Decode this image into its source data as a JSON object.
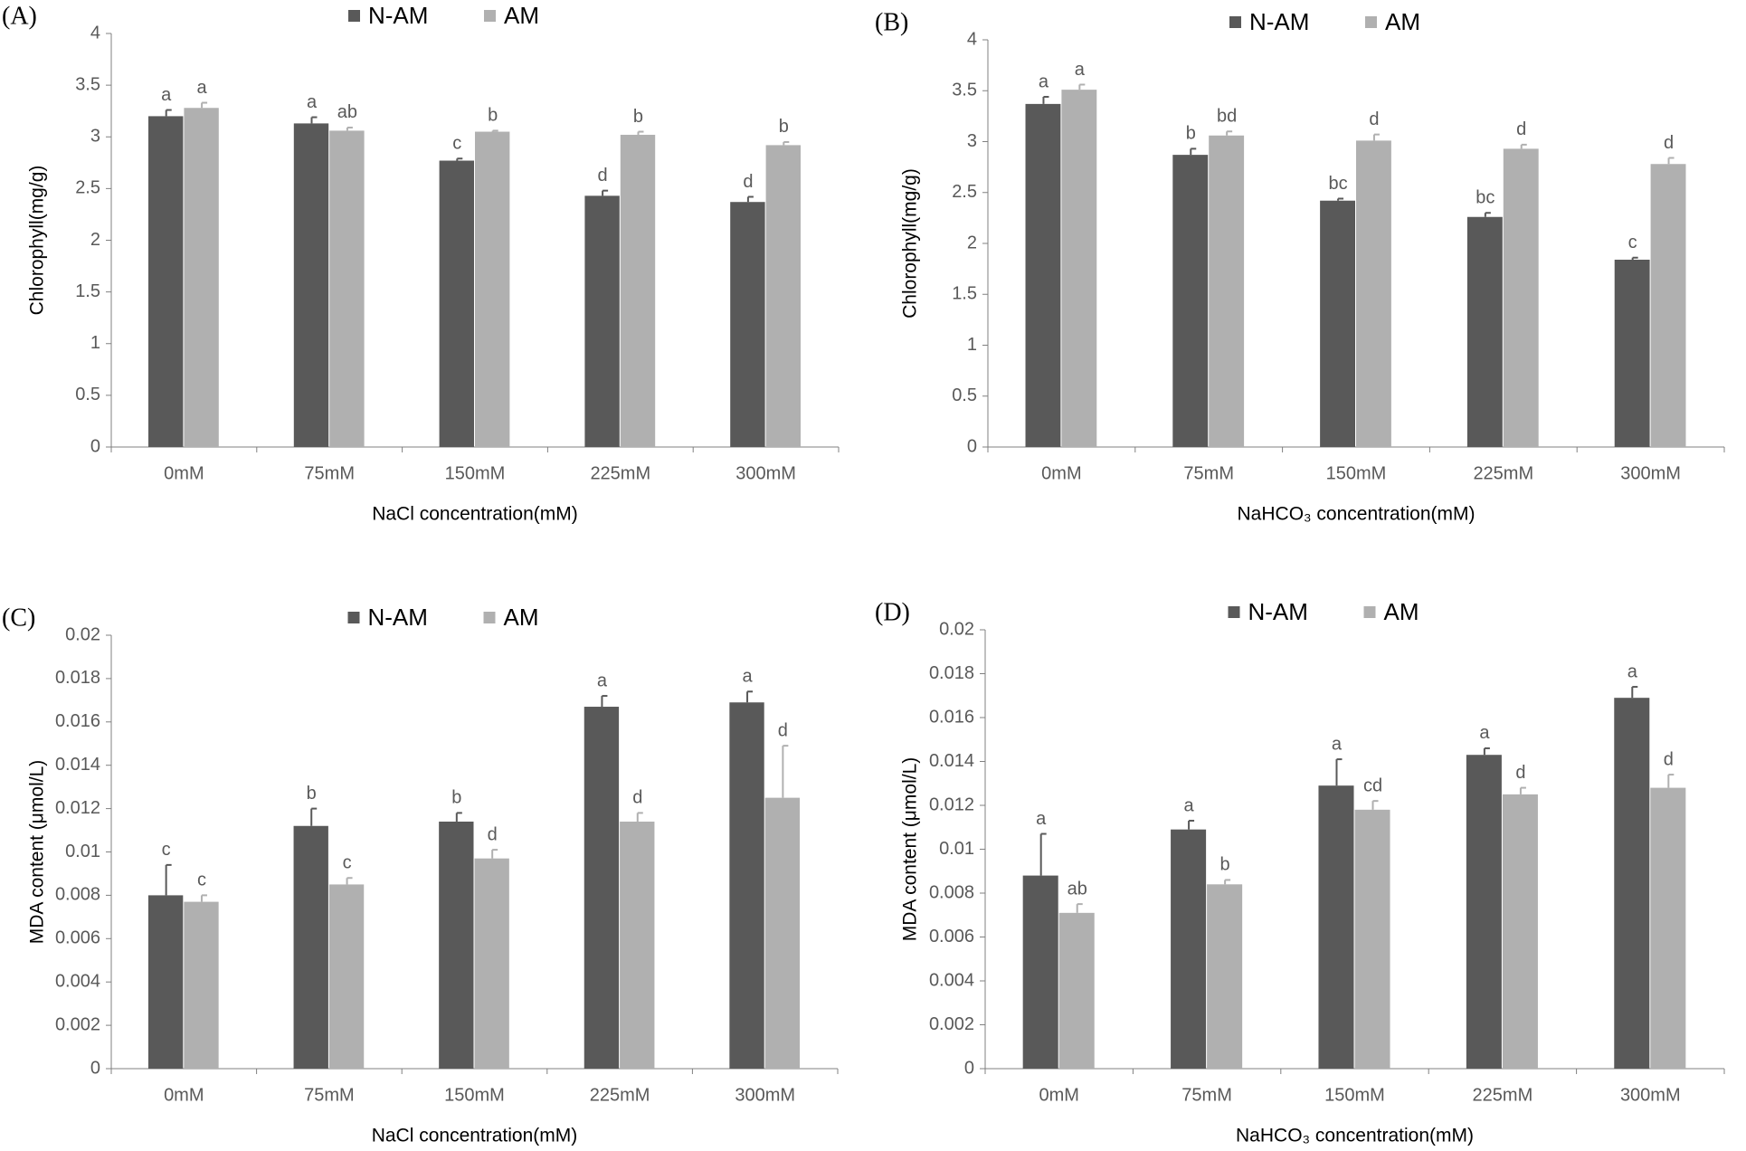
{
  "chart_data": [
    {
      "type": "bar",
      "panel": "(A)",
      "y_label": "Chlorophyll(mg/g)",
      "x_label": "NaCl concentration(mM)",
      "categories": [
        "0mM",
        "75mM",
        "150mM",
        "225mM",
        "300mM"
      ],
      "ylim": [
        0,
        4
      ],
      "yticks": [
        0,
        0.5,
        1,
        1.5,
        2,
        2.5,
        3,
        3.5,
        4
      ],
      "series": [
        {
          "name": "N-AM",
          "color": "#595959",
          "values": [
            3.2,
            3.13,
            2.77,
            2.43,
            2.37
          ],
          "errors": [
            0.06,
            0.06,
            0.02,
            0.05,
            0.05
          ],
          "letters": [
            "a",
            "a",
            "c",
            "d",
            "d"
          ]
        },
        {
          "name": "AM",
          "color": "#b0b0b0",
          "values": [
            3.28,
            3.06,
            3.05,
            3.02,
            2.92
          ],
          "errors": [
            0.05,
            0.03,
            0.01,
            0.03,
            0.03
          ],
          "letters": [
            "a",
            "ab",
            "b",
            "b",
            "b"
          ]
        }
      ]
    },
    {
      "type": "bar",
      "panel": "(B)",
      "y_label": "Chlorophyll(mg/g)",
      "x_label": "NaHCO₃ concentration(mM)",
      "categories": [
        "0mM",
        "75mM",
        "150mM",
        "225mM",
        "300mM"
      ],
      "ylim": [
        0,
        4
      ],
      "yticks": [
        0,
        0.5,
        1,
        1.5,
        2,
        2.5,
        3,
        3.5,
        4
      ],
      "series": [
        {
          "name": "N-AM",
          "color": "#595959",
          "values": [
            3.37,
            2.87,
            2.42,
            2.26,
            1.84
          ],
          "errors": [
            0.07,
            0.06,
            0.02,
            0.04,
            0.02
          ],
          "letters": [
            "a",
            "b",
            "bc",
            "bc",
            "c"
          ]
        },
        {
          "name": "AM",
          "color": "#b0b0b0",
          "values": [
            3.51,
            3.06,
            3.01,
            2.93,
            2.78
          ],
          "errors": [
            0.05,
            0.04,
            0.06,
            0.04,
            0.06
          ],
          "letters": [
            "a",
            "bd",
            "d",
            "d",
            "d"
          ]
        }
      ]
    },
    {
      "type": "bar",
      "panel": "(C)",
      "y_label": "MDA content (μmol/L)",
      "x_label": "NaCl concentration(mM)",
      "categories": [
        "0mM",
        "75mM",
        "150mM",
        "225mM",
        "300mM"
      ],
      "ylim": [
        0,
        0.02
      ],
      "yticks": [
        0,
        0.002,
        0.004,
        0.006,
        0.008,
        0.01,
        0.012,
        0.014,
        0.016,
        0.018,
        0.02
      ],
      "series": [
        {
          "name": "N-AM",
          "color": "#595959",
          "values": [
            0.008,
            0.0112,
            0.0114,
            0.0167,
            0.0169
          ],
          "errors": [
            0.0014,
            0.0008,
            0.0004,
            0.0005,
            0.0005
          ],
          "letters": [
            "c",
            "b",
            "b",
            "a",
            "a"
          ]
        },
        {
          "name": "AM",
          "color": "#b0b0b0",
          "values": [
            0.0077,
            0.0085,
            0.0097,
            0.0114,
            0.0125
          ],
          "errors": [
            0.0003,
            0.0003,
            0.0004,
            0.0004,
            0.0024
          ],
          "letters": [
            "c",
            "c",
            "d",
            "d",
            "d"
          ]
        }
      ]
    },
    {
      "type": "bar",
      "panel": "(D)",
      "y_label": "MDA content (μmol/L)",
      "x_label": "NaHCO₃ concentration(mM)",
      "categories": [
        "0mM",
        "75mM",
        "150mM",
        "225mM",
        "300mM"
      ],
      "ylim": [
        0,
        0.02
      ],
      "yticks": [
        0,
        0.002,
        0.004,
        0.006,
        0.008,
        0.01,
        0.012,
        0.014,
        0.016,
        0.018,
        0.02
      ],
      "series": [
        {
          "name": "N-AM",
          "color": "#595959",
          "values": [
            0.0088,
            0.0109,
            0.0129,
            0.0143,
            0.0169
          ],
          "errors": [
            0.0019,
            0.0004,
            0.0012,
            0.0003,
            0.0005
          ],
          "letters": [
            "a",
            "a",
            "a",
            "a",
            "a"
          ]
        },
        {
          "name": "AM",
          "color": "#b0b0b0",
          "values": [
            0.0071,
            0.0084,
            0.0118,
            0.0125,
            0.0128
          ],
          "errors": [
            0.0004,
            0.0002,
            0.0004,
            0.0003,
            0.0006
          ],
          "letters": [
            "ab",
            "b",
            "cd",
            "d",
            "d"
          ]
        }
      ]
    }
  ]
}
